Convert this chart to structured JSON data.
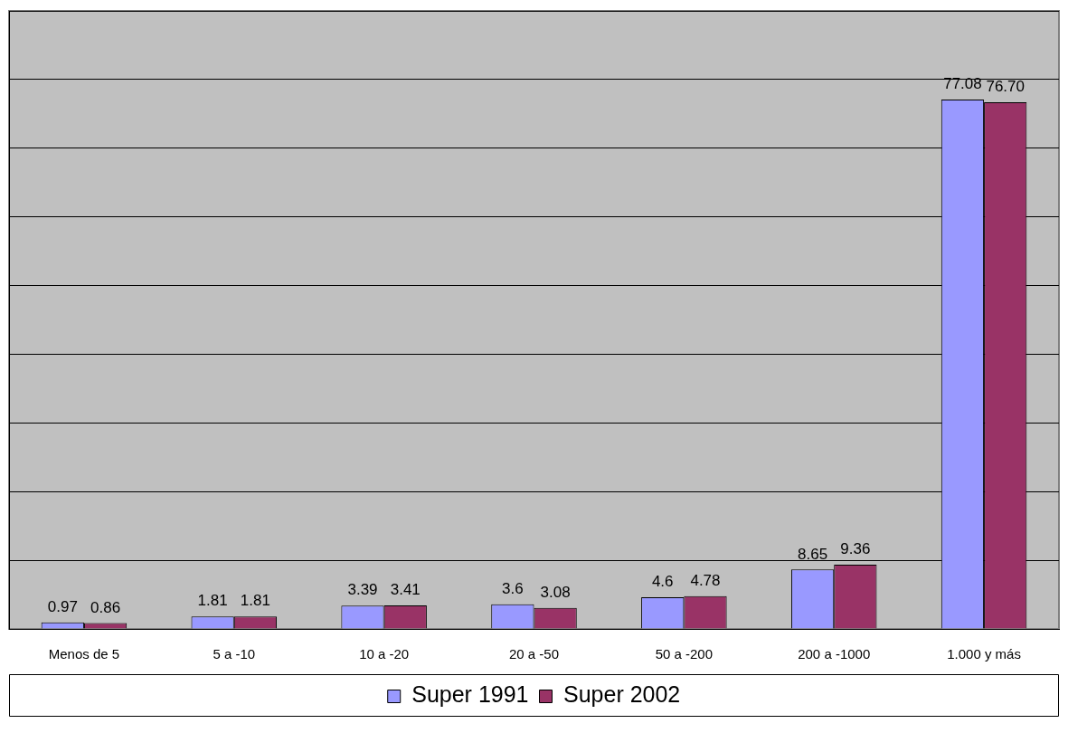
{
  "chart_data": {
    "type": "bar",
    "categories": [
      "Menos de 5",
      "5 a -10",
      "10 a -20",
      "20 a -50",
      "50 a -200",
      "200 a -1000",
      "1.000 y más"
    ],
    "series": [
      {
        "name": "Super 1991",
        "color": "#9999ff",
        "values": [
          0.97,
          1.81,
          3.39,
          3.6,
          4.6,
          8.65,
          77.08
        ],
        "value_labels": [
          "0.97",
          "1.81",
          "3.39",
          "3.6",
          "4.6",
          "8.65",
          "77.08"
        ]
      },
      {
        "name": "Super 2002",
        "color": "#993366",
        "values": [
          0.86,
          1.81,
          3.41,
          3.08,
          4.78,
          9.36,
          76.7
        ],
        "value_labels": [
          "0.86",
          "1.81",
          "3.41",
          "3.08",
          "4.78",
          "9.36",
          "76.70"
        ]
      }
    ],
    "tick_labels": "x",
    "grid": "y",
    "legend": "bottom"
  }
}
